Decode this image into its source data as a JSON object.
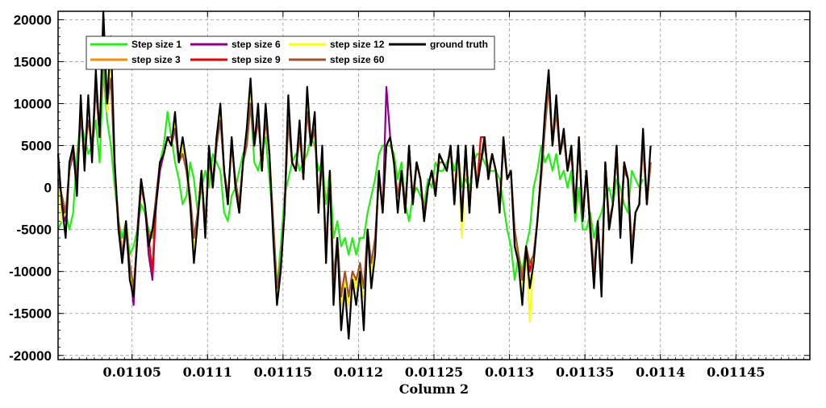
{
  "chart_data": {
    "type": "line",
    "title": "",
    "xlabel": "Column 2",
    "ylabel": "",
    "xlim": [
      0.011001,
      0.011499
    ],
    "ylim": [
      -20500,
      21000
    ],
    "grid": true,
    "legend_position": "top-left",
    "legend_columns": 4,
    "x_ticks": [
      0.01105,
      0.0111,
      0.01115,
      0.0112,
      0.01125,
      0.0113,
      0.01135,
      0.0114,
      0.01145
    ],
    "x_tick_labels": [
      "0.01105",
      "0.0111",
      "0.01115",
      "0.0112",
      "0.01125",
      "0.0113",
      "0.01135",
      "0.0114",
      "0.01145"
    ],
    "y_ticks": [
      -20000,
      -15000,
      -10000,
      -5000,
      0,
      5000,
      10000,
      15000,
      20000
    ],
    "y_tick_labels": [
      "-20000",
      "-15000",
      "-10000",
      "-5000",
      "0",
      "5000",
      "10000",
      "15000",
      "20000"
    ],
    "x_start": 0.011001,
    "x_step": 2.5e-06,
    "series": [
      {
        "name": "ground truth",
        "color": "#000000",
        "values": [
          4000,
          -2000,
          -6000,
          3000,
          5000,
          -1000,
          11000,
          2000,
          11000,
          3000,
          14000,
          6000,
          21000,
          10000,
          18000,
          3000,
          -5000,
          -9000,
          -4000,
          -11000,
          -13000,
          -6000,
          1000,
          -2000,
          -7000,
          -5000,
          -2000,
          3000,
          4000,
          6000,
          5000,
          9000,
          3000,
          6000,
          3000,
          -2000,
          -9000,
          -4000,
          2000,
          -6000,
          5000,
          0,
          6000,
          10000,
          2000,
          -2000,
          6000,
          0,
          -3000,
          3000,
          7000,
          13000,
          5000,
          10000,
          2000,
          10000,
          4000,
          -6000,
          -14000,
          -10000,
          -3000,
          11000,
          3000,
          2000,
          8000,
          1000,
          12000,
          5000,
          9000,
          -3000,
          5000,
          -9000,
          2000,
          -14000,
          -6000,
          -17000,
          -12000,
          -18000,
          -11000,
          -14000,
          -10000,
          -17000,
          -5000,
          -12000,
          -8000,
          2000,
          -3000,
          5000,
          6000,
          3000,
          -3000,
          2000,
          -3000,
          5000,
          -2000,
          3000,
          1000,
          -4000,
          0,
          2000,
          -1000,
          4000,
          3000,
          2000,
          5000,
          -2000,
          5000,
          -4000,
          5000,
          -3000,
          5000,
          0,
          3000,
          6000,
          1000,
          4000,
          2000,
          -3000,
          6000,
          1000,
          2000,
          -7000,
          -9000,
          -14000,
          -7000,
          -12000,
          -9000,
          -4000,
          2000,
          9000,
          14000,
          5000,
          11000,
          4000,
          7000,
          2000,
          5000,
          -3000,
          6000,
          -4000,
          2000,
          -5000,
          -12000,
          -4000,
          -13000,
          3000,
          -5000,
          -2000,
          5000,
          -6000,
          3000,
          1000,
          -9000,
          -3000,
          -2000,
          7000,
          -2000,
          5000
        ]
      },
      {
        "name": "Step size 1",
        "color": "#22ee11",
        "values": [
          -5000,
          -4000,
          -3000,
          -5000,
          -3000,
          4000,
          8000,
          6000,
          4000,
          5000,
          8000,
          3000,
          14000,
          8000,
          5000,
          0,
          -4000,
          -6000,
          -4000,
          -8000,
          -7000,
          -5000,
          -2000,
          -3000,
          -5000,
          -6000,
          -1000,
          3000,
          5000,
          9000,
          6000,
          3000,
          1000,
          -2000,
          -1000,
          3000,
          1000,
          -3000,
          0,
          2000,
          0,
          4000,
          3000,
          2000,
          -3000,
          -4000,
          -1000,
          0,
          2000,
          4000,
          5000,
          10000,
          3000,
          2000,
          4000,
          6000,
          1000,
          -4000,
          -12000,
          -7000,
          -1000,
          1000,
          3000,
          4000,
          2000,
          3000,
          4000,
          6000,
          5000,
          2000,
          3000,
          -2000,
          2000,
          -6000,
          -4000,
          -7000,
          -6000,
          -8000,
          -6000,
          -8000,
          -6000,
          -6000,
          -3000,
          -1000,
          1000,
          4000,
          5000,
          5000,
          5000,
          4000,
          1000,
          3000,
          -2000,
          -4000,
          -1000,
          0,
          -1000,
          -2000,
          1000,
          0,
          3000,
          2000,
          2000,
          3000,
          4000,
          2000,
          4000,
          0,
          1000,
          0,
          3000,
          4000,
          4000,
          3000,
          2000,
          2000,
          2000,
          1000,
          -2000,
          -5000,
          -7000,
          -11000,
          -8000,
          -10000,
          -7000,
          -5000,
          0,
          2000,
          5000,
          3000,
          4000,
          2000,
          4000,
          1000,
          2000,
          0,
          2000,
          -4000,
          0,
          -5000,
          -5000,
          -3000,
          -6000,
          -4000,
          -3000,
          -1000,
          0,
          -2000,
          1000,
          0,
          -2000,
          -3000,
          2000,
          1000,
          0,
          1000
        ]
      },
      {
        "name": "step size 3",
        "color": "#ff8c00",
        "values": [
          1000,
          -1000,
          -3000,
          2000,
          5000,
          0,
          10000,
          3000,
          9000,
          4000,
          13000,
          6000,
          19000,
          9000,
          15000,
          2000,
          -5000,
          -8000,
          -4000,
          -10000,
          -12000,
          -6000,
          1000,
          -2000,
          -6000,
          -5000,
          -1000,
          3000,
          4000,
          6000,
          5000,
          8000,
          3000,
          5000,
          2000,
          -2000,
          -7000,
          -3000,
          2000,
          -5000,
          4000,
          0,
          6000,
          9000,
          2000,
          -2000,
          6000,
          0,
          -3000,
          3000,
          6000,
          11000,
          5000,
          9000,
          2000,
          9000,
          4000,
          -5000,
          -13000,
          -9000,
          -3000,
          9000,
          3000,
          2000,
          7000,
          1000,
          10000,
          5000,
          8000,
          -3000,
          4000,
          -8000,
          2000,
          -12000,
          -6000,
          -14000,
          -11000,
          -14000,
          -10000,
          -12000,
          -9000,
          -13000,
          -5000,
          -10000,
          -7000,
          2000,
          -3000,
          5000,
          6000,
          3000,
          -2000,
          2000,
          -3000,
          5000,
          -2000,
          3000,
          1000,
          -4000,
          0,
          2000,
          -1000,
          4000,
          3000,
          2000,
          5000,
          -2000,
          5000,
          -4000,
          5000,
          -3000,
          5000,
          0,
          3000,
          6000,
          1000,
          4000,
          2000,
          -3000,
          6000,
          1000,
          2000,
          -6000,
          -8000,
          -12000,
          -7000,
          -10000,
          -8000,
          -4000,
          2000,
          8000,
          13000,
          5000,
          10000,
          4000,
          6000,
          2000,
          5000,
          -3000,
          6000,
          -4000,
          2000,
          -5000,
          -11000,
          -4000,
          -12000,
          3000,
          -5000,
          -2000,
          5000,
          -5000,
          3000,
          1000,
          -8000,
          -3000,
          -2000,
          6000,
          -2000,
          3000
        ]
      },
      {
        "name": "step size 6",
        "color": "#8b008b",
        "values": [
          1000,
          -1000,
          -4000,
          2000,
          4000,
          0,
          9000,
          3000,
          9000,
          4000,
          12000,
          6000,
          18000,
          9000,
          15000,
          2000,
          -4000,
          -9000,
          -5000,
          -10000,
          -14000,
          -5000,
          1000,
          -2000,
          -8000,
          -11000,
          -2000,
          2000,
          4000,
          6000,
          5000,
          7000,
          3000,
          5000,
          2000,
          -2000,
          -7000,
          -3000,
          2000,
          -5000,
          4000,
          0,
          5000,
          9000,
          2000,
          -2000,
          6000,
          0,
          -3000,
          3000,
          6000,
          10000,
          5000,
          9000,
          2000,
          9000,
          4000,
          -5000,
          -13000,
          -9000,
          -3000,
          9000,
          3000,
          2000,
          7000,
          1000,
          10000,
          5000,
          8000,
          -3000,
          4000,
          -8000,
          2000,
          -12000,
          -6000,
          -14000,
          -11000,
          -14000,
          -10000,
          -12000,
          -9000,
          -13000,
          -5000,
          -10000,
          -7000,
          2000,
          -3000,
          12000,
          6000,
          3000,
          -2000,
          2000,
          -3000,
          5000,
          -2000,
          3000,
          1000,
          -4000,
          0,
          2000,
          -1000,
          4000,
          3000,
          2000,
          5000,
          -2000,
          5000,
          -4000,
          5000,
          -3000,
          5000,
          0,
          3000,
          6000,
          1000,
          4000,
          2000,
          -3000,
          6000,
          1000,
          2000,
          -6000,
          -8000,
          -12000,
          -7000,
          -10000,
          -8000,
          -4000,
          2000,
          8000,
          13000,
          5000,
          10000,
          4000,
          6000,
          2000,
          5000,
          -3000,
          6000,
          -4000,
          2000,
          -5000,
          -11000,
          -4000,
          -12000,
          3000,
          -5000,
          -2000,
          5000,
          -5000,
          3000,
          1000,
          -8000,
          -3000,
          -2000,
          6000,
          -2000,
          3000
        ]
      },
      {
        "name": "step size 9",
        "color": "#ee0000",
        "values": [
          1000,
          -1000,
          -3000,
          2000,
          5000,
          0,
          10000,
          3000,
          9000,
          4000,
          13000,
          6000,
          19000,
          9000,
          15000,
          2000,
          -5000,
          -8000,
          -4000,
          -10000,
          -12000,
          -6000,
          1000,
          -2000,
          -6000,
          -10000,
          -1000,
          3000,
          4000,
          6000,
          5000,
          8000,
          3000,
          5000,
          2000,
          -2000,
          -7000,
          -3000,
          2000,
          -5000,
          4000,
          0,
          6000,
          9000,
          2000,
          -2000,
          6000,
          0,
          -3000,
          3000,
          6000,
          11000,
          5000,
          9000,
          2000,
          9000,
          4000,
          -5000,
          -13000,
          -9000,
          -3000,
          9000,
          3000,
          2000,
          7000,
          1000,
          10000,
          5000,
          8000,
          -3000,
          4000,
          -8000,
          2000,
          -12000,
          -6000,
          -14000,
          -11000,
          -14000,
          -10000,
          -12000,
          -9000,
          -13000,
          -5000,
          -10000,
          -7000,
          2000,
          -3000,
          5000,
          6000,
          3000,
          -2000,
          2000,
          -3000,
          5000,
          -2000,
          3000,
          1000,
          -4000,
          0,
          2000,
          -1000,
          4000,
          3000,
          2000,
          5000,
          -2000,
          5000,
          -4000,
          5000,
          -3000,
          5000,
          0,
          6000,
          6000,
          1000,
          4000,
          2000,
          -3000,
          6000,
          1000,
          2000,
          -6000,
          -8000,
          -12000,
          -7000,
          -10000,
          -8000,
          -4000,
          2000,
          8000,
          13000,
          5000,
          10000,
          4000,
          6000,
          2000,
          5000,
          -3000,
          6000,
          -4000,
          2000,
          -5000,
          -11000,
          -4000,
          -12000,
          3000,
          -5000,
          -2000,
          5000,
          -5000,
          3000,
          1000,
          -8000,
          -3000,
          -2000,
          6000,
          -2000,
          3000
        ]
      },
      {
        "name": "step size 12",
        "color": "#ffff00",
        "values": [
          1000,
          -4000,
          -3000,
          2000,
          5000,
          0,
          10000,
          3000,
          9000,
          4000,
          13000,
          6000,
          19000,
          9000,
          15000,
          2000,
          -5000,
          -8000,
          -4000,
          -10000,
          -12000,
          -6000,
          1000,
          -2000,
          -6000,
          -5000,
          -1000,
          3000,
          4000,
          6000,
          5000,
          8000,
          3000,
          5000,
          2000,
          -2000,
          -7000,
          -3000,
          2000,
          -5000,
          4000,
          0,
          6000,
          9000,
          2000,
          -2000,
          6000,
          0,
          -3000,
          3000,
          6000,
          11000,
          5000,
          9000,
          2000,
          9000,
          4000,
          -5000,
          -13000,
          -9000,
          -3000,
          9000,
          3000,
          2000,
          7000,
          1000,
          10000,
          5000,
          8000,
          -3000,
          4000,
          -8000,
          2000,
          -12000,
          -6000,
          -14000,
          -11000,
          -14000,
          -10000,
          -12000,
          -9000,
          -13000,
          -5000,
          -10000,
          -7000,
          2000,
          -3000,
          5000,
          6000,
          3000,
          -2000,
          2000,
          -3000,
          5000,
          -2000,
          3000,
          1000,
          -4000,
          0,
          2000,
          -1000,
          4000,
          3000,
          2000,
          5000,
          -2000,
          5000,
          -6000,
          5000,
          -3000,
          5000,
          0,
          3000,
          6000,
          1000,
          4000,
          2000,
          -3000,
          6000,
          1000,
          2000,
          -6000,
          -8000,
          -12000,
          -7000,
          -16000,
          -8000,
          -4000,
          2000,
          8000,
          13000,
          5000,
          10000,
          4000,
          6000,
          2000,
          5000,
          -3000,
          6000,
          -4000,
          2000,
          -5000,
          -11000,
          -4000,
          -12000,
          3000,
          -5000,
          -2000,
          5000,
          -5000,
          3000,
          1000,
          -8000,
          -3000,
          -2000,
          6000,
          -2000,
          3000
        ]
      },
      {
        "name": "step size 60",
        "color": "#a0522d",
        "values": [
          1000,
          -1000,
          -3000,
          2000,
          5000,
          1000,
          9000,
          4000,
          8000,
          5000,
          12000,
          7000,
          16000,
          10000,
          13000,
          2000,
          -4000,
          -8000,
          -5000,
          -9000,
          -12000,
          -6000,
          0,
          -2000,
          -6000,
          -5000,
          -1000,
          3000,
          4000,
          6000,
          6000,
          7000,
          3000,
          4000,
          2000,
          -1000,
          -6000,
          -3000,
          1000,
          -4000,
          3000,
          1000,
          5000,
          8000,
          2000,
          -1000,
          5000,
          1000,
          -2000,
          3000,
          5000,
          10000,
          5000,
          8000,
          3000,
          8000,
          4000,
          -4000,
          -12000,
          -9000,
          -3000,
          8000,
          3000,
          2000,
          6000,
          2000,
          9000,
          5000,
          7000,
          -2000,
          3000,
          -7000,
          1000,
          -11000,
          -6000,
          -13000,
          -10000,
          -13000,
          -10000,
          -11000,
          -9000,
          -12000,
          -5000,
          -9000,
          -6000,
          1000,
          -2000,
          5000,
          6000,
          3000,
          -1000,
          2000,
          -2000,
          4000,
          -1000,
          3000,
          1000,
          -3000,
          0,
          2000,
          0,
          3000,
          3000,
          2000,
          5000,
          -1000,
          5000,
          -3000,
          4000,
          -2000,
          4000,
          0,
          3000,
          5000,
          2000,
          4000,
          2000,
          -2000,
          5000,
          1000,
          2000,
          -5000,
          -8000,
          -11000,
          -7000,
          -9000,
          -8000,
          -4000,
          1000,
          7000,
          12000,
          5000,
          9000,
          4000,
          6000,
          2000,
          4000,
          -2000,
          5000,
          -3000,
          2000,
          -4000,
          -10000,
          -4000,
          -11000,
          3000,
          -4000,
          -2000,
          4000,
          -4000,
          2000,
          1000,
          -7000,
          -3000,
          -2000,
          5000,
          -2000,
          3000
        ]
      }
    ]
  }
}
